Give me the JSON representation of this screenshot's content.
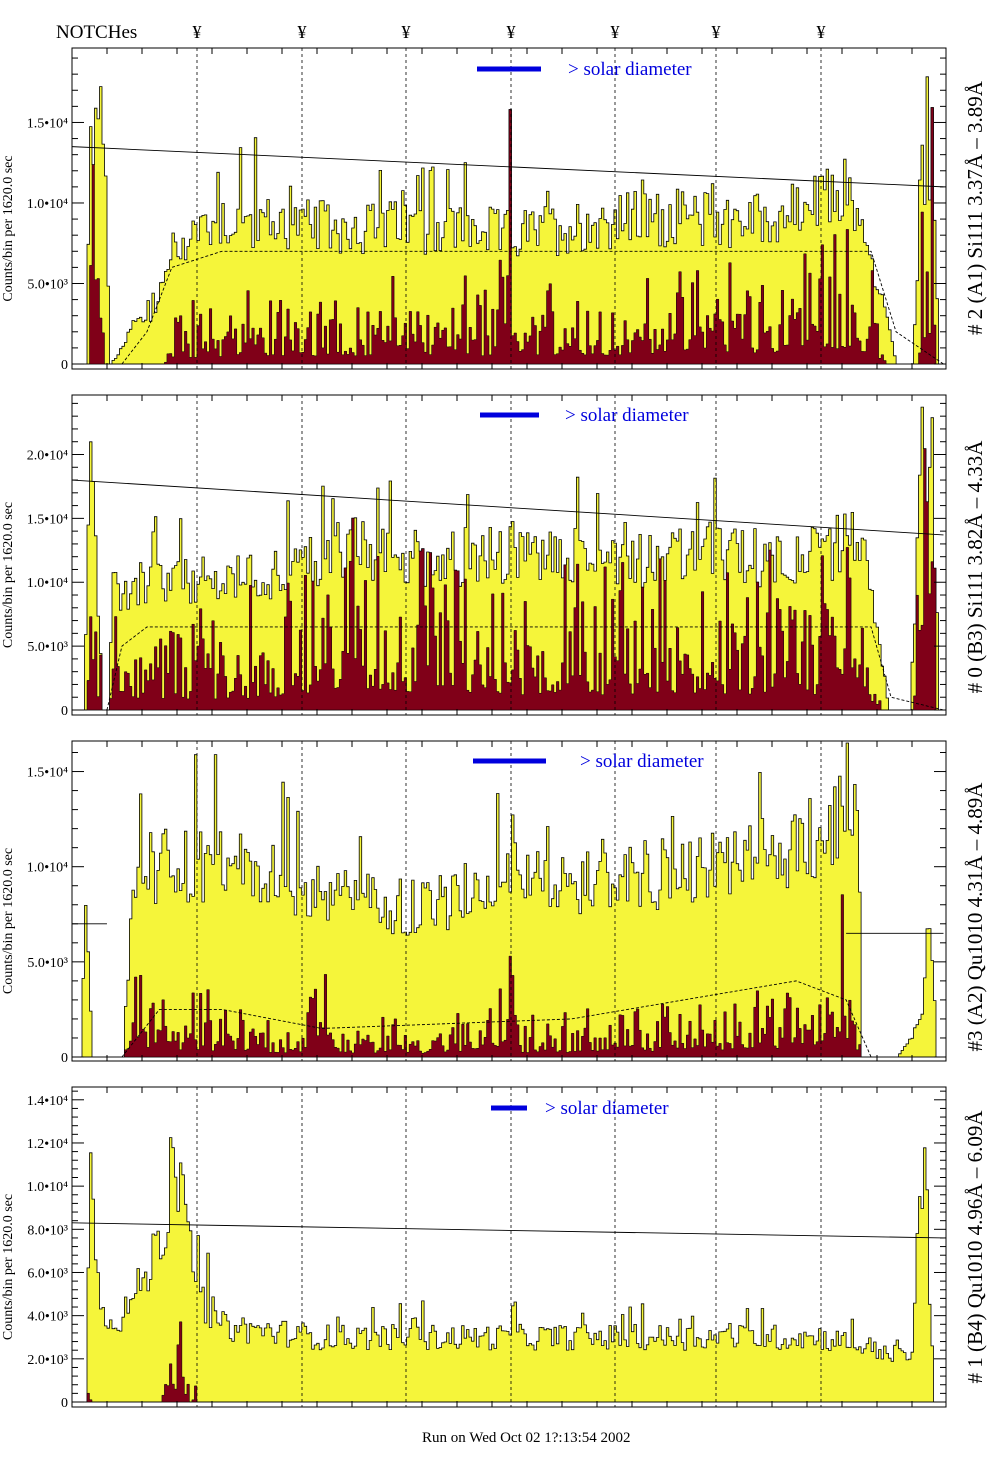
{
  "header": {
    "notch_label": "NOTCHes",
    "notch_symbol": "¥",
    "notch_count": 7
  },
  "footer": {
    "run_text": "Run on Wed Oct 02 1?:13:54 2002"
  },
  "colors": {
    "total": "#f5f53a",
    "peaks": "#800018",
    "legend": "#0000dd"
  },
  "chart_data": [
    {
      "type": "bar",
      "title": "# 2 (A1) Si111  3.37Å – 3.89Å",
      "ylabel": "Counts/bin per   1620.0 sec",
      "legend": "> solar diameter",
      "ylim": [
        0,
        19500
      ],
      "yticks": [
        {
          "v": 0,
          "label": "0"
        },
        {
          "v": 5000,
          "label": "5.0•10³"
        },
        {
          "v": 10000,
          "label": "1.0•10⁴"
        },
        {
          "v": 15000,
          "label": "1.5•10⁴"
        }
      ],
      "nbins": 350,
      "total_keypoints": [
        [
          0,
          0
        ],
        [
          5,
          0
        ],
        [
          7,
          14
        ],
        [
          11,
          15
        ],
        [
          13,
          10
        ],
        [
          15,
          0
        ],
        [
          20,
          1
        ],
        [
          24,
          2.5
        ],
        [
          32,
          3
        ],
        [
          36,
          5
        ],
        [
          40,
          7
        ],
        [
          50,
          8.5
        ],
        [
          60,
          9
        ],
        [
          100,
          8.5
        ],
        [
          150,
          8.5
        ],
        [
          174,
          8
        ],
        [
          175,
          18.5
        ],
        [
          176,
          8
        ],
        [
          220,
          9
        ],
        [
          280,
          9
        ],
        [
          300,
          10
        ],
        [
          310,
          11
        ],
        [
          322,
          5
        ],
        [
          330,
          0
        ],
        [
          336,
          0
        ],
        [
          340,
          12
        ],
        [
          344,
          12.5
        ],
        [
          347,
          0
        ],
        [
          349,
          0
        ]
      ],
      "peak_keypoints": [
        [
          0,
          0
        ],
        [
          6,
          0
        ],
        [
          8,
          10
        ],
        [
          11,
          9
        ],
        [
          13,
          0
        ],
        [
          36,
          0
        ],
        [
          40,
          2
        ],
        [
          60,
          2
        ],
        [
          100,
          2.5
        ],
        [
          170,
          2.5
        ],
        [
          175,
          9
        ],
        [
          177,
          2.5
        ],
        [
          250,
          3
        ],
        [
          300,
          4
        ],
        [
          310,
          5
        ],
        [
          320,
          3
        ],
        [
          326,
          0
        ],
        [
          338,
          0
        ],
        [
          341,
          8
        ],
        [
          344,
          8
        ],
        [
          346,
          0
        ],
        [
          349,
          0
        ]
      ],
      "solid_line": [
        [
          0,
          13.5
        ],
        [
          349,
          11
        ]
      ],
      "dashed_line": [
        [
          20,
          0
        ],
        [
          30,
          2
        ],
        [
          40,
          6
        ],
        [
          60,
          7
        ],
        [
          320,
          7
        ],
        [
          330,
          2
        ],
        [
          349,
          0
        ]
      ]
    },
    {
      "type": "bar",
      "title": "# 0 (B3) Si111  3.82Å – 4.33Å",
      "ylabel": "Counts/bin per   1620.0 sec",
      "legend": "> solar diameter",
      "ylim": [
        0,
        24500
      ],
      "yticks": [
        {
          "v": 0,
          "label": "0"
        },
        {
          "v": 5000,
          "label": "5.0•10³"
        },
        {
          "v": 10000,
          "label": "1.0•10⁴"
        },
        {
          "v": 15000,
          "label": "1.5•10⁴"
        },
        {
          "v": 20000,
          "label": "2.0•10⁴"
        }
      ],
      "nbins": 350,
      "total_keypoints": [
        [
          0,
          0
        ],
        [
          4,
          0
        ],
        [
          7,
          22
        ],
        [
          9,
          12
        ],
        [
          12,
          0
        ],
        [
          14,
          0
        ],
        [
          16,
          9
        ],
        [
          30,
          10
        ],
        [
          60,
          10
        ],
        [
          90,
          11
        ],
        [
          100,
          12
        ],
        [
          110,
          13
        ],
        [
          120,
          12
        ],
        [
          175,
          12
        ],
        [
          176,
          17
        ],
        [
          177,
          12
        ],
        [
          250,
          12
        ],
        [
          300,
          12
        ],
        [
          315,
          14
        ],
        [
          320,
          8
        ],
        [
          327,
          0
        ],
        [
          335,
          0
        ],
        [
          340,
          20
        ],
        [
          344,
          20
        ],
        [
          347,
          0
        ],
        [
          349,
          0
        ]
      ],
      "peak_keypoints": [
        [
          0,
          0
        ],
        [
          5,
          0
        ],
        [
          7,
          18
        ],
        [
          10,
          5
        ],
        [
          13,
          0
        ],
        [
          16,
          4
        ],
        [
          40,
          4
        ],
        [
          90,
          5
        ],
        [
          100,
          8
        ],
        [
          110,
          9
        ],
        [
          120,
          7
        ],
        [
          175,
          6
        ],
        [
          176,
          13
        ],
        [
          178,
          6
        ],
        [
          230,
          6
        ],
        [
          300,
          6
        ],
        [
          310,
          9
        ],
        [
          318,
          4
        ],
        [
          324,
          0
        ],
        [
          336,
          0
        ],
        [
          340,
          15
        ],
        [
          343,
          15
        ],
        [
          346,
          0
        ],
        [
          349,
          0
        ]
      ],
      "solid_line": [
        [
          0,
          18
        ],
        [
          349,
          13.7
        ]
      ],
      "dashed_line": [
        [
          14,
          0
        ],
        [
          20,
          5
        ],
        [
          30,
          6.5
        ],
        [
          320,
          6.5
        ],
        [
          328,
          1
        ],
        [
          349,
          0
        ]
      ]
    },
    {
      "type": "bar",
      "title": "#3 (A2) Qu1010  4.31Å – 4.89Å",
      "ylabel": "Counts/bin per   1620.0 sec",
      "legend": "> solar diameter",
      "ylim": [
        0,
        16500
      ],
      "yticks": [
        {
          "v": 0,
          "label": "0"
        },
        {
          "v": 5000,
          "label": "5.0•10³"
        },
        {
          "v": 10000,
          "label": "1.0•10⁴"
        },
        {
          "v": 15000,
          "label": "1.5•10⁴"
        }
      ],
      "nbins": 350,
      "total_keypoints": [
        [
          0,
          0
        ],
        [
          3,
          0
        ],
        [
          5,
          8
        ],
        [
          8,
          0
        ],
        [
          20,
          0
        ],
        [
          24,
          9
        ],
        [
          30,
          10
        ],
        [
          60,
          10
        ],
        [
          90,
          9
        ],
        [
          120,
          8
        ],
        [
          150,
          8
        ],
        [
          175,
          10
        ],
        [
          176,
          14.5
        ],
        [
          178,
          9
        ],
        [
          200,
          9
        ],
        [
          260,
          10
        ],
        [
          290,
          11
        ],
        [
          300,
          12
        ],
        [
          310,
          13
        ],
        [
          314,
          12
        ],
        [
          316,
          0
        ],
        [
          330,
          0
        ],
        [
          340,
          2
        ],
        [
          343,
          8
        ],
        [
          346,
          0
        ],
        [
          349,
          0
        ]
      ],
      "peak_keypoints": [
        [
          0,
          0
        ],
        [
          20,
          0
        ],
        [
          22,
          2
        ],
        [
          30,
          2
        ],
        [
          60,
          1.5
        ],
        [
          90,
          1
        ],
        [
          100,
          2.5
        ],
        [
          101,
          4
        ],
        [
          103,
          1
        ],
        [
          150,
          1
        ],
        [
          170,
          2
        ],
        [
          175,
          5
        ],
        [
          178,
          1
        ],
        [
          230,
          1.5
        ],
        [
          280,
          2
        ],
        [
          300,
          3
        ],
        [
          310,
          4
        ],
        [
          316,
          0
        ],
        [
          349,
          0
        ]
      ],
      "solid_line": [
        [
          0,
          7
        ],
        [
          14,
          7
        ]
      ],
      "solid_line2": [
        [
          310,
          6.5
        ],
        [
          349,
          6.5
        ]
      ],
      "dashed_line": [
        [
          20,
          0
        ],
        [
          35,
          2.5
        ],
        [
          60,
          2.5
        ],
        [
          100,
          1.5
        ],
        [
          200,
          2
        ],
        [
          290,
          4
        ],
        [
          310,
          3
        ],
        [
          320,
          0
        ]
      ]
    },
    {
      "type": "bar",
      "title": "# 1 (B4) Qu1010 4.96Å – 6.09Å",
      "ylabel": "Counts/bin per   1620.0 sec",
      "legend": "> solar diameter",
      "ylim": [
        0,
        14500
      ],
      "yticks": [
        {
          "v": 0,
          "label": "0"
        },
        {
          "v": 2000,
          "label": "2.0•10³"
        },
        {
          "v": 4000,
          "label": "4.0•10³"
        },
        {
          "v": 6000,
          "label": "6.0•10³"
        },
        {
          "v": 8000,
          "label": "8.0•10³"
        },
        {
          "v": 10000,
          "label": "1.0•10⁴"
        },
        {
          "v": 12000,
          "label": "1.2•10⁴"
        },
        {
          "v": 14000,
          "label": "1.4•10⁴"
        }
      ],
      "nbins": 350,
      "total_keypoints": [
        [
          0,
          0
        ],
        [
          5,
          0
        ],
        [
          7,
          13
        ],
        [
          9,
          8
        ],
        [
          11,
          4
        ],
        [
          20,
          4
        ],
        [
          30,
          6
        ],
        [
          38,
          9
        ],
        [
          42,
          10
        ],
        [
          46,
          8
        ],
        [
          50,
          5
        ],
        [
          60,
          3.5
        ],
        [
          100,
          3
        ],
        [
          150,
          3
        ],
        [
          175,
          3
        ],
        [
          176,
          5
        ],
        [
          178,
          3
        ],
        [
          240,
          3
        ],
        [
          300,
          3
        ],
        [
          320,
          2.5
        ],
        [
          336,
          2
        ],
        [
          338,
          8
        ],
        [
          341,
          11
        ],
        [
          345,
          0
        ],
        [
          349,
          0
        ]
      ],
      "peak_keypoints": [
        [
          0,
          0
        ],
        [
          5,
          0
        ],
        [
          6,
          1
        ],
        [
          8,
          0
        ],
        [
          35,
          0
        ],
        [
          38,
          2
        ],
        [
          42,
          3
        ],
        [
          47,
          0
        ],
        [
          49,
          1
        ],
        [
          50,
          0
        ],
        [
          349,
          0
        ]
      ],
      "solid_line": [
        [
          0,
          8.3
        ],
        [
          349,
          7.6
        ]
      ],
      "dashed_line": []
    }
  ]
}
